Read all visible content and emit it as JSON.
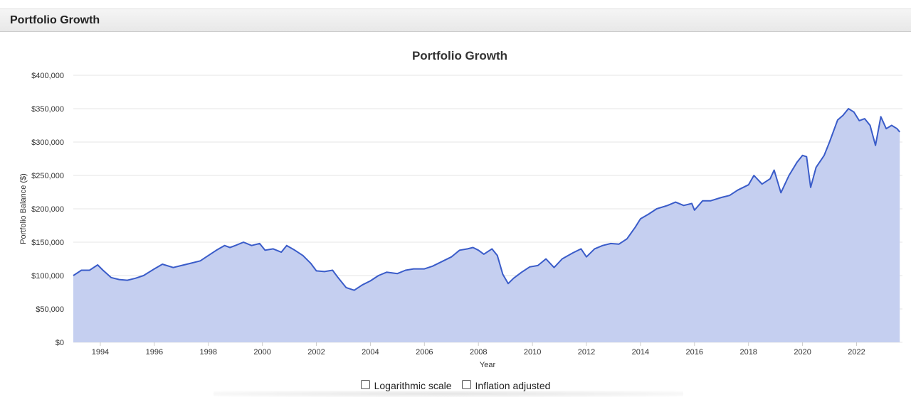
{
  "panel": {
    "title": "Portfolio Growth"
  },
  "controls": {
    "log_scale_label": "Logarithmic scale",
    "inflation_label": "Inflation adjusted"
  },
  "colors": {
    "line": "#3a5cc9",
    "fill": "#c5cff0",
    "grid": "#e6e6e6"
  },
  "chart_data": {
    "type": "area",
    "title": "Portfolio Growth",
    "xlabel": "Year",
    "ylabel": "Portfolio Balance ($)",
    "xlim": [
      1993.0,
      2023.7
    ],
    "ylim": [
      0,
      400000
    ],
    "y_ticks": [
      0,
      50000,
      100000,
      150000,
      200000,
      250000,
      300000,
      350000,
      400000
    ],
    "y_tick_labels": [
      "$0",
      "$50,000",
      "$100,000",
      "$150,000",
      "$200,000",
      "$250,000",
      "$300,000",
      "$350,000",
      "$400,000"
    ],
    "x_ticks": [
      1994,
      1996,
      1998,
      2000,
      2002,
      2004,
      2006,
      2008,
      2010,
      2012,
      2014,
      2016,
      2018,
      2020,
      2022
    ],
    "x_tick_labels": [
      "1994",
      "1996",
      "1998",
      "2000",
      "2002",
      "2004",
      "2006",
      "2008",
      "2010",
      "2012",
      "2014",
      "2016",
      "2018",
      "2020",
      "2022"
    ],
    "grid": true,
    "legend": "none",
    "series": [
      {
        "x": [
          1993.0,
          1993.3,
          1993.6,
          1993.9,
          1994.1,
          1994.4,
          1994.7,
          1995.0,
          1995.3,
          1995.6,
          1996.0,
          1996.3,
          1996.7,
          1997.0,
          1997.3,
          1997.7,
          1998.0,
          1998.3,
          1998.6,
          1998.8,
          1999.0,
          1999.3,
          1999.6,
          1999.9,
          2000.1,
          2000.4,
          2000.7,
          2000.9,
          2001.2,
          2001.5,
          2001.8,
          2002.0,
          2002.3,
          2002.6,
          2002.8,
          2003.1,
          2003.4,
          2003.7,
          2004.0,
          2004.3,
          2004.6,
          2005.0,
          2005.3,
          2005.6,
          2006.0,
          2006.3,
          2006.7,
          2007.0,
          2007.3,
          2007.6,
          2007.8,
          2008.0,
          2008.2,
          2008.5,
          2008.7,
          2008.9,
          2009.1,
          2009.3,
          2009.6,
          2009.9,
          2010.2,
          2010.5,
          2010.8,
          2011.1,
          2011.5,
          2011.8,
          2012.0,
          2012.3,
          2012.6,
          2012.9,
          2013.2,
          2013.5,
          2013.8,
          2014.0,
          2014.3,
          2014.6,
          2015.0,
          2015.3,
          2015.6,
          2015.9,
          2016.0,
          2016.3,
          2016.6,
          2017.0,
          2017.3,
          2017.6,
          2018.0,
          2018.2,
          2018.5,
          2018.8,
          2018.95,
          2019.2,
          2019.5,
          2019.8,
          2020.0,
          2020.15,
          2020.3,
          2020.5,
          2020.8,
          2021.0,
          2021.3,
          2021.5,
          2021.7,
          2021.9,
          2022.1,
          2022.3,
          2022.5,
          2022.7,
          2022.9,
          2023.1,
          2023.3,
          2023.5,
          2023.6
        ],
        "values": [
          100000,
          108000,
          108000,
          116000,
          108000,
          97000,
          94000,
          93000,
          96000,
          100000,
          110000,
          117000,
          112000,
          115000,
          118000,
          122000,
          130000,
          138000,
          145000,
          142000,
          145000,
          150000,
          145000,
          148000,
          138000,
          140000,
          135000,
          145000,
          138000,
          130000,
          118000,
          107000,
          106000,
          108000,
          97000,
          82000,
          78000,
          86000,
          92000,
          100000,
          105000,
          103000,
          108000,
          110000,
          110000,
          114000,
          122000,
          128000,
          138000,
          140000,
          142000,
          138000,
          132000,
          140000,
          130000,
          102000,
          88000,
          96000,
          105000,
          113000,
          115000,
          125000,
          112000,
          125000,
          134000,
          140000,
          128000,
          140000,
          145000,
          148000,
          147000,
          155000,
          172000,
          185000,
          192000,
          200000,
          205000,
          210000,
          205000,
          208000,
          198000,
          212000,
          212000,
          217000,
          220000,
          228000,
          236000,
          250000,
          237000,
          245000,
          258000,
          224000,
          250000,
          270000,
          280000,
          278000,
          232000,
          262000,
          280000,
          300000,
          333000,
          340000,
          350000,
          345000,
          332000,
          335000,
          325000,
          295000,
          338000,
          320000,
          325000,
          320000,
          315000
        ]
      }
    ]
  }
}
